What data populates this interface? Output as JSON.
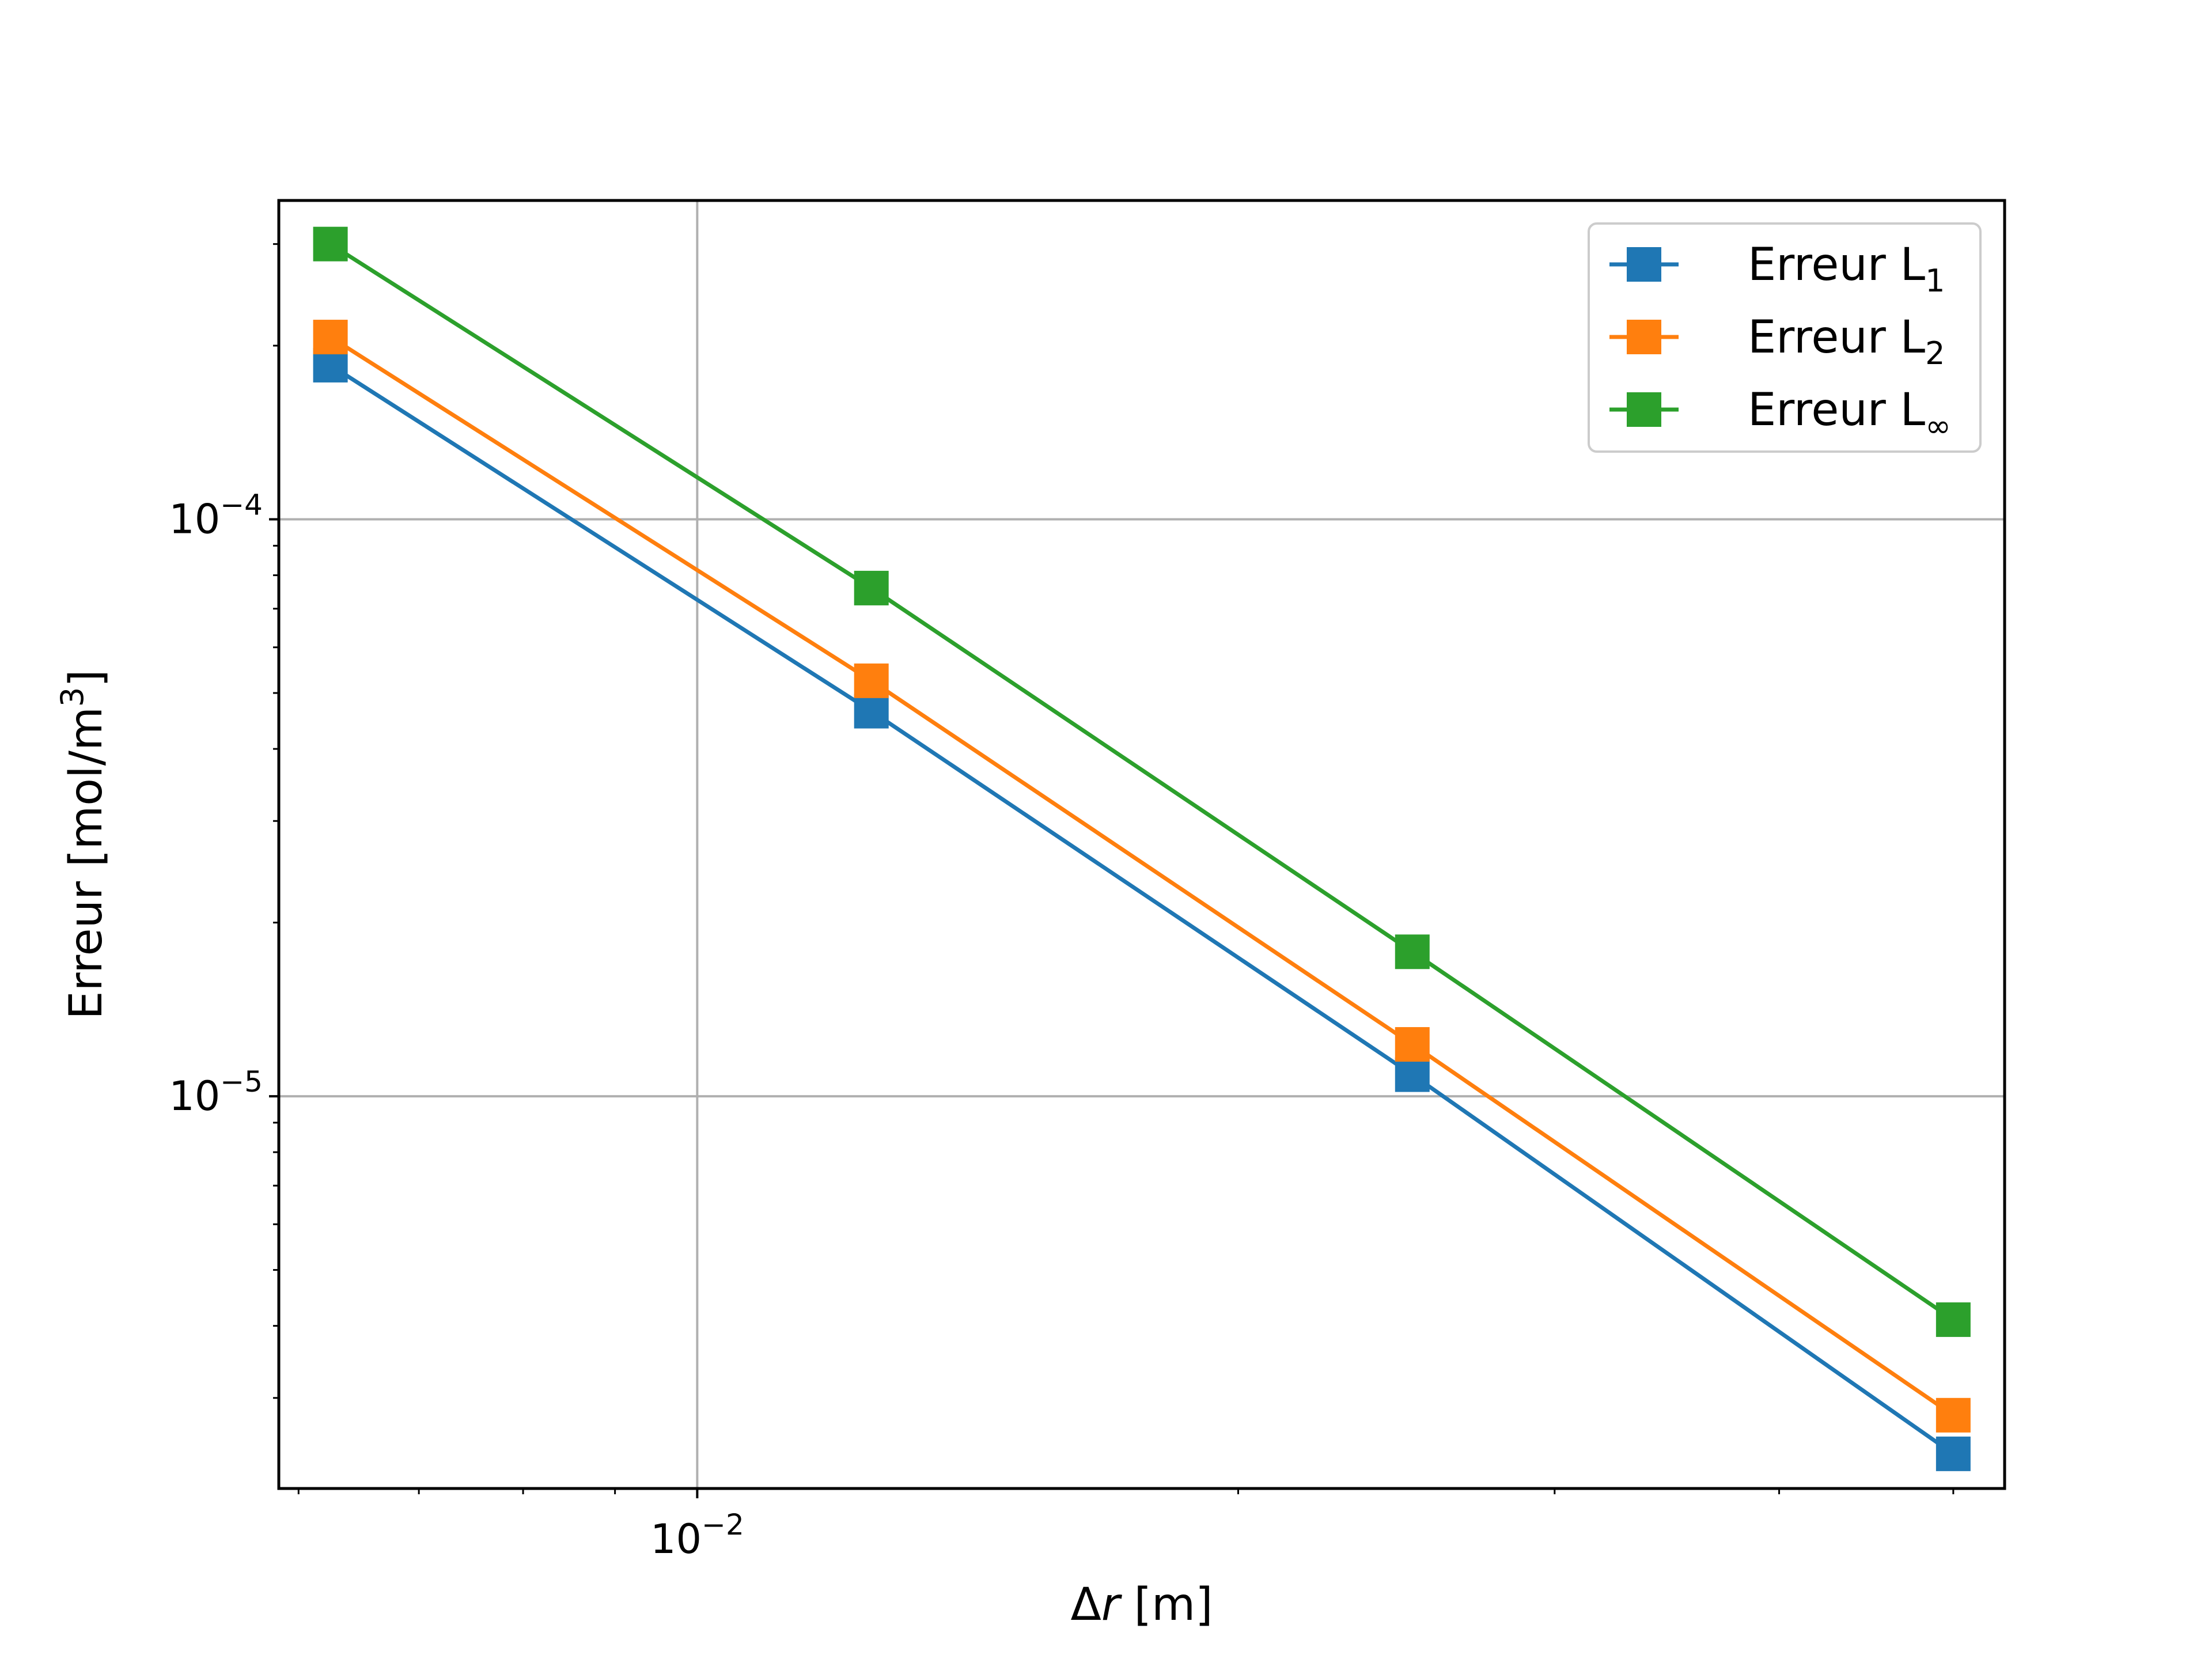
{
  "chart_data": {
    "type": "line",
    "xscale": "log",
    "yscale": "log",
    "x": [
      0.00625,
      0.0125,
      0.025,
      0.05
    ],
    "series": [
      {
        "name": "Erreur L",
        "sub": "1",
        "color": "#1f77b4",
        "marker": "square",
        "values": [
          0.000185,
          4.65e-05,
          1.09e-05,
          2.4e-06
        ]
      },
      {
        "name": "Erreur L",
        "sub": "2",
        "color": "#ff7f0e",
        "marker": "square",
        "values": [
          0.000207,
          5.25e-05,
          1.23e-05,
          2.8e-06
        ]
      },
      {
        "name": "Erreur L",
        "sub": "∞",
        "color": "#2ca02c",
        "marker": "square",
        "values": [
          0.0003,
          7.6e-05,
          1.78e-05,
          4.1e-06
        ]
      }
    ],
    "xlim": [
      0.00585,
      0.0534
    ],
    "ylim": [
      2.09e-06,
      0.000357
    ],
    "xlabel": {
      "prefix": "Δ",
      "var": "r",
      "unit": " [m]"
    },
    "ylabel": {
      "text": "Erreur [mol/m",
      "sup": "3",
      "close": "]"
    },
    "xticks_major": [
      {
        "value": 0.01,
        "base": "10",
        "exp": "−2"
      }
    ],
    "yticks_major": [
      {
        "value": 0.0001,
        "base": "10",
        "exp": "−4"
      },
      {
        "value": 1e-05,
        "base": "10",
        "exp": "−5"
      }
    ],
    "grid": true,
    "legend_position": "top-right"
  }
}
